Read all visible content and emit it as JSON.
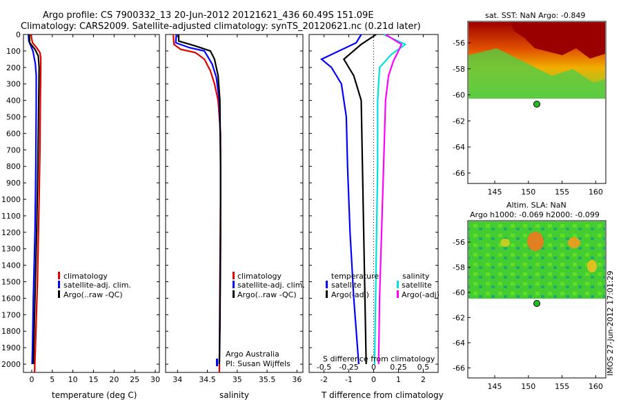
{
  "header": {
    "title_line1": "Argo profile: CS 7900332_13 20-Jun-2012 20121621_436 60.49S 151.09E",
    "title_line2": "Climatology: CARS2009. Satellite-adjusted climatology: synTS_20120621.nc (0.21d later)"
  },
  "side_label": "IMOS 27-Jun-2012 17:01:29",
  "colors": {
    "climatology": "#e00000",
    "satellite": "#0000ff",
    "argo": "#000000",
    "sal_satellite": "#00e0e0",
    "sal_argo": "#ff00ff",
    "map_dot": "#22bb22"
  },
  "chart_data": [
    {
      "id": "temp",
      "type": "line",
      "xlabel": "temperature (deg C)",
      "xlim": [
        -2,
        31
      ],
      "xticks": [
        0,
        5,
        10,
        15,
        20,
        25,
        30
      ],
      "ylim": [
        0,
        2050
      ],
      "yticks": [
        0,
        100,
        200,
        300,
        400,
        500,
        600,
        700,
        800,
        900,
        1000,
        1100,
        1200,
        1300,
        1400,
        1500,
        1600,
        1700,
        1800,
        1900,
        2000
      ],
      "legend": [
        "climatology",
        "satellite-adj. clim.",
        "Argo(..raw -QC)"
      ],
      "series": [
        {
          "name": "climatology",
          "color": "climatology",
          "points": [
            [
              -0.2,
              0
            ],
            [
              0.2,
              50
            ],
            [
              1.2,
              80
            ],
            [
              2.0,
              110
            ],
            [
              2.2,
              140
            ],
            [
              2.2,
              200
            ],
            [
              2.1,
              400
            ],
            [
              2.0,
              700
            ],
            [
              1.8,
              1000
            ],
            [
              1.4,
              1500
            ],
            [
              0.9,
              1900
            ],
            [
              0.7,
              2050
            ]
          ]
        },
        {
          "name": "satellite-adj. clim.",
          "color": "satellite",
          "points": [
            [
              -0.8,
              0
            ],
            [
              -0.7,
              40
            ],
            [
              0.3,
              100
            ],
            [
              0.9,
              180
            ],
            [
              1.1,
              250
            ],
            [
              1.1,
              400
            ],
            [
              1.0,
              800
            ],
            [
              0.8,
              1200
            ],
            [
              0.4,
              1600
            ],
            [
              0.2,
              1900
            ],
            [
              0.1,
              2000
            ]
          ]
        },
        {
          "name": "Argo(..raw -QC)",
          "color": "argo",
          "points": [
            [
              -0.6,
              0
            ],
            [
              -0.5,
              50
            ],
            [
              0.8,
              90
            ],
            [
              1.6,
              130
            ],
            [
              1.8,
              200
            ],
            [
              1.7,
              400
            ],
            [
              1.5,
              800
            ],
            [
              1.2,
              1200
            ],
            [
              0.8,
              1600
            ],
            [
              0.5,
              1900
            ],
            [
              0.4,
              2000
            ]
          ]
        }
      ]
    },
    {
      "id": "sal",
      "type": "line",
      "xlabel": "salinity",
      "xlim": [
        33.8,
        36.1
      ],
      "xticks": [
        34,
        34.5,
        35,
        35.5,
        36
      ],
      "ylim": [
        0,
        2050
      ],
      "legend": [
        "climatology",
        "satellite-adj. clim.",
        "Argo(..raw -QC)"
      ],
      "annotation": [
        "Argo Australia",
        "PI: Susan Wijffels"
      ],
      "series": [
        {
          "name": "climatology",
          "color": "climatology",
          "points": [
            [
              33.93,
              0
            ],
            [
              33.94,
              60
            ],
            [
              34.05,
              90
            ],
            [
              34.3,
              110
            ],
            [
              34.45,
              150
            ],
            [
              34.55,
              220
            ],
            [
              34.62,
              300
            ],
            [
              34.68,
              400
            ],
            [
              34.72,
              600
            ],
            [
              34.72,
              1000
            ],
            [
              34.71,
              1500
            ],
            [
              34.7,
              2050
            ]
          ]
        },
        {
          "name": "satellite-adj. clim.",
          "color": "satellite",
          "points": [
            [
              33.98,
              0
            ],
            [
              33.97,
              50
            ],
            [
              34.2,
              80
            ],
            [
              34.45,
              100
            ],
            [
              34.58,
              180
            ],
            [
              34.65,
              260
            ],
            [
              34.7,
              400
            ],
            [
              34.72,
              700
            ],
            [
              34.72,
              1200
            ],
            [
              34.71,
              1700
            ],
            [
              34.7,
              2000
            ]
          ]
        },
        {
          "name": "Argo(..raw -QC)",
          "color": "argo",
          "points": [
            [
              34.02,
              0
            ],
            [
              34.02,
              40
            ],
            [
              34.3,
              70
            ],
            [
              34.55,
              100
            ],
            [
              34.62,
              150
            ],
            [
              34.68,
              250
            ],
            [
              34.71,
              400
            ],
            [
              34.72,
              800
            ],
            [
              34.72,
              1300
            ],
            [
              34.71,
              1800
            ],
            [
              34.7,
              2000
            ]
          ]
        }
      ]
    },
    {
      "id": "diff",
      "type": "line",
      "xlabel": "T difference from climatology",
      "xlim": [
        -2.6,
        2.6
      ],
      "xticks": [
        -2,
        -1,
        0,
        1,
        2
      ],
      "top_xlabel": "S difference from climatology",
      "top_xlim": [
        -0.65,
        0.65
      ],
      "top_xticks": [
        -0.5,
        -0.25,
        0,
        0.25,
        0.5
      ],
      "ylim": [
        0,
        2050
      ],
      "legend_titles": [
        "temperature",
        "salinity"
      ],
      "legend": [
        "satellite",
        "Argo(-adj)",
        "satellite",
        "Argo(-adj)"
      ],
      "series": [
        {
          "name": "T satellite",
          "color": "satellite",
          "axis": "T",
          "points": [
            [
              -0.5,
              0
            ],
            [
              -0.7,
              50
            ],
            [
              -2.1,
              150
            ],
            [
              -1.7,
              200
            ],
            [
              -1.3,
              300
            ],
            [
              -1.1,
              500
            ],
            [
              -1.05,
              800
            ],
            [
              -0.95,
              1200
            ],
            [
              -0.8,
              1600
            ],
            [
              -0.65,
              1900
            ],
            [
              -0.6,
              2000
            ]
          ]
        },
        {
          "name": "T Argo(-adj)",
          "color": "argo",
          "axis": "T",
          "points": [
            [
              0.1,
              0
            ],
            [
              -0.5,
              60
            ],
            [
              -1.2,
              150
            ],
            [
              -0.8,
              250
            ],
            [
              -0.5,
              400
            ],
            [
              -0.45,
              800
            ],
            [
              -0.4,
              1200
            ],
            [
              -0.35,
              1600
            ],
            [
              -0.3,
              2000
            ]
          ]
        },
        {
          "name": "S satellite",
          "color": "sal_satellite",
          "axis": "S",
          "points": [
            [
              0.1,
              0
            ],
            [
              0.32,
              60
            ],
            [
              0.18,
              120
            ],
            [
              0.06,
              200
            ],
            [
              0.04,
              400
            ],
            [
              0.04,
              800
            ],
            [
              0.03,
              1200
            ],
            [
              0.02,
              1600
            ],
            [
              0.01,
              2000
            ]
          ]
        },
        {
          "name": "S Argo(-adj)",
          "color": "sal_argo",
          "axis": "S",
          "points": [
            [
              0.12,
              0
            ],
            [
              0.28,
              60
            ],
            [
              0.25,
              100
            ],
            [
              0.2,
              160
            ],
            [
              0.15,
              250
            ],
            [
              0.12,
              400
            ],
            [
              0.1,
              800
            ],
            [
              0.08,
              1200
            ],
            [
              0.06,
              1600
            ],
            [
              0.05,
              2000
            ]
          ]
        }
      ]
    }
  ],
  "maps": [
    {
      "id": "sst",
      "title": "sat. SST: NaN Argo: -0.849",
      "subtitle": "",
      "xticks": [
        "145",
        "150",
        "155",
        "160"
      ],
      "yticks": [
        "-56",
        "-58",
        "-60",
        "-62",
        "-64",
        "-66"
      ],
      "argo_position": {
        "lon": 151.09,
        "lat": -60.49
      }
    },
    {
      "id": "sla",
      "title": "Altim. SLA: NaN",
      "subtitle": "Argo h1000: -0.069 h2000: -0.099",
      "xticks": [
        "145",
        "150",
        "155",
        "160"
      ],
      "yticks": [
        "-56",
        "-58",
        "-60",
        "-62",
        "-64",
        "-66"
      ],
      "argo_position": {
        "lon": 151.09,
        "lat": -60.49
      }
    }
  ]
}
